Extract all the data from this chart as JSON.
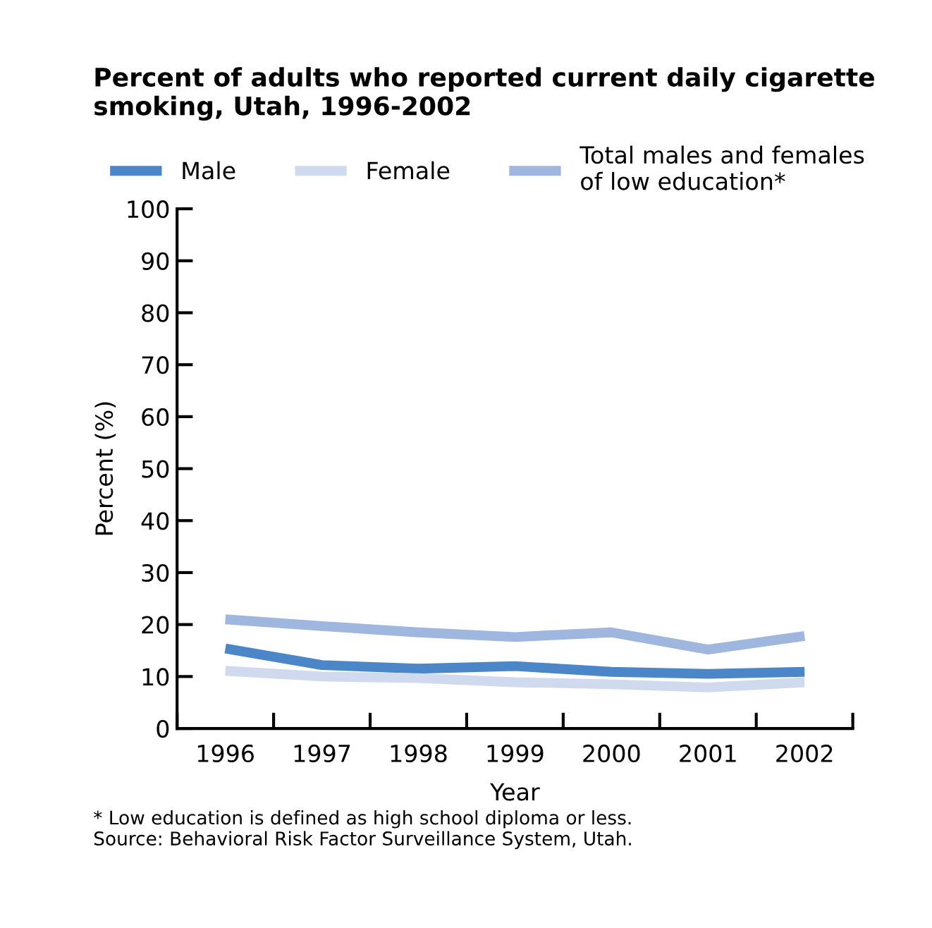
{
  "chart_data": {
    "type": "line",
    "title": "Percent of adults who reported current daily cigarette\nsmoking, Utah, 1996-2002",
    "xlabel": "Year",
    "ylabel": "Percent (%)",
    "categories": [
      "1996",
      "1997",
      "1998",
      "1999",
      "2000",
      "2001",
      "2002"
    ],
    "series": [
      {
        "name": "Male",
        "color": "#4a86c8",
        "values": [
          15.4,
          12.2,
          11.5,
          12.0,
          10.9,
          10.5,
          10.9
        ]
      },
      {
        "name": "Female",
        "color": "#cfdaee",
        "values": [
          11.1,
          10.0,
          9.7,
          8.9,
          8.5,
          7.9,
          8.9
        ]
      },
      {
        "name": "Total males and females\nof low education*",
        "color": "#9fb6df",
        "values": [
          21.0,
          19.7,
          18.5,
          17.6,
          18.5,
          15.2,
          17.8
        ]
      }
    ],
    "ylim": [
      0,
      100
    ],
    "yticks": [
      0,
      10,
      20,
      30,
      40,
      50,
      60,
      70,
      80,
      90,
      100
    ],
    "grid": false,
    "legend": "top",
    "marker": "none",
    "line_style": "solid",
    "annotations": [
      "* Low education is defined as high school diploma or less.\nSource: Behavioral Risk Factor Surveillance System, Utah."
    ]
  }
}
